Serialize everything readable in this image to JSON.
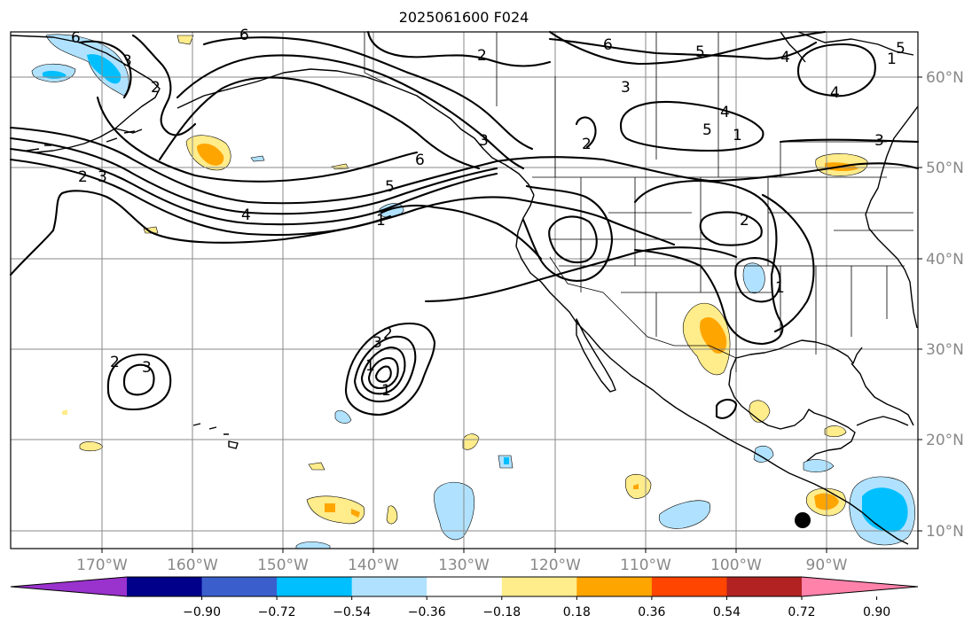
{
  "title": "2025061600 F024",
  "map": {
    "lon_labels": [
      "170°W",
      "160°W",
      "150°W",
      "140°W",
      "130°W",
      "120°W",
      "110°W",
      "100°W",
      "90°W"
    ],
    "lat_labels": [
      "60°N",
      "50°N",
      "40°N",
      "30°N",
      "20°N",
      "10°N"
    ],
    "contour_labels": [
      "6",
      "3",
      "2",
      "3",
      "2",
      "6",
      "4",
      "6",
      "5",
      "4",
      "3",
      "5",
      "2",
      "3",
      "2",
      "4",
      "6",
      "5",
      "1",
      "2",
      "1",
      "3",
      "2",
      "1",
      "3",
      "2",
      "1",
      "4",
      "1",
      "1",
      "3",
      "5"
    ],
    "marker": "black-dot"
  },
  "colorbar": {
    "ticks": [
      "−0.90",
      "−0.72",
      "−0.54",
      "−0.36",
      "−0.18",
      "0.18",
      "0.36",
      "0.54",
      "0.72",
      "0.90"
    ],
    "colors": [
      "#9a32cd",
      "#00008b",
      "#3a5fcd",
      "#00bfff",
      "#b0e2ff",
      "#ffffff",
      "#ffec8b",
      "#ffa500",
      "#ff4500",
      "#b22222",
      "#ff82ab"
    ]
  }
}
